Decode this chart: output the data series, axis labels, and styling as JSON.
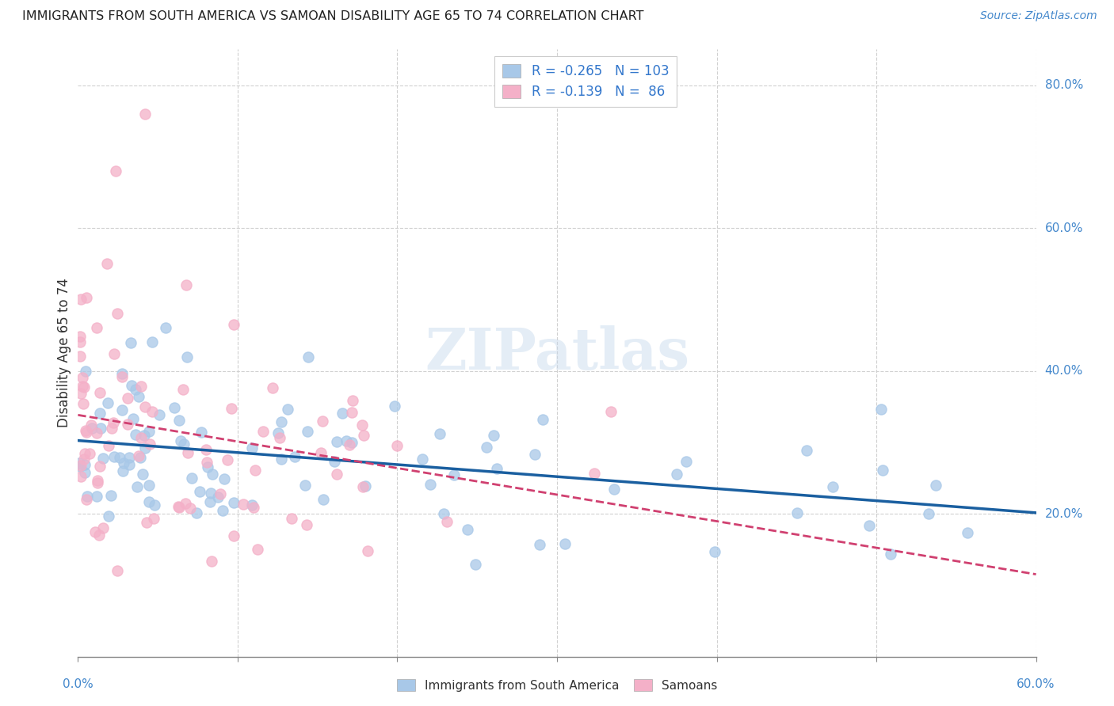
{
  "title": "IMMIGRANTS FROM SOUTH AMERICA VS SAMOAN DISABILITY AGE 65 TO 74 CORRELATION CHART",
  "source": "Source: ZipAtlas.com",
  "ylabel": "Disability Age 65 to 74",
  "R_blue": -0.265,
  "N_blue": 103,
  "R_pink": -0.139,
  "N_pink": 86,
  "blue_color": "#a8c8e8",
  "pink_color": "#f4b0c8",
  "blue_line_color": "#1a5fa0",
  "pink_line_color": "#d04070",
  "legend_label_blue": "Immigrants from South America",
  "legend_label_pink": "Samoans",
  "xmin": 0.0,
  "xmax": 0.6,
  "ymin": 0.0,
  "ymax": 0.85,
  "seed": 7
}
